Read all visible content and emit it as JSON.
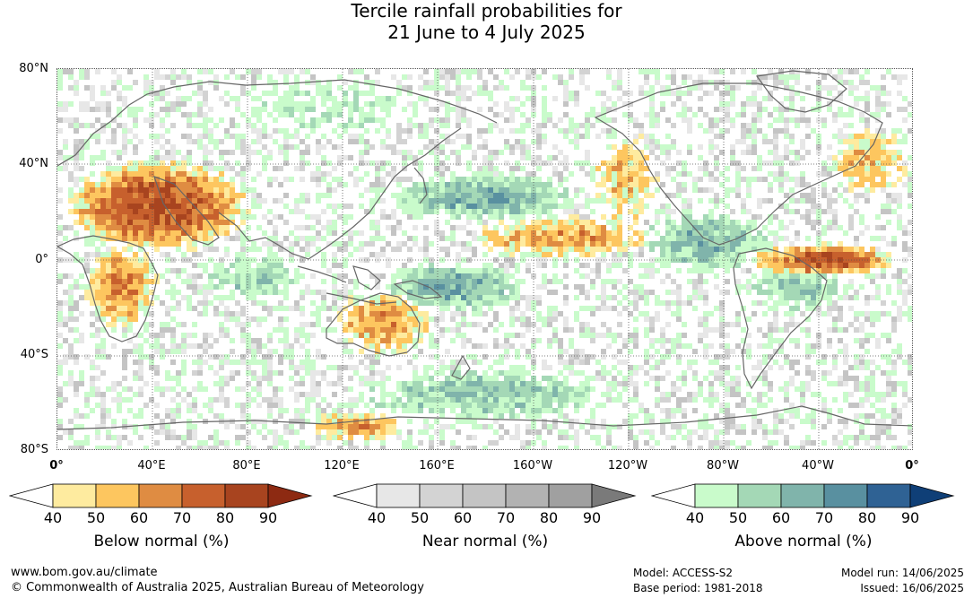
{
  "title": {
    "line1": "Tercile rainfall probabilities for",
    "line2": "21 June to 4 July 2025"
  },
  "axes": {
    "lat_labels": [
      "80°N",
      "40°N",
      "0°",
      "40°S",
      "80°S"
    ],
    "lon_labels": [
      "0°",
      "40°E",
      "80°E",
      "120°E",
      "160°E",
      "160°W",
      "120°W",
      "80°W",
      "40°W",
      "0°"
    ]
  },
  "legends": [
    {
      "title": "Below normal (%)",
      "ticks": [
        "40",
        "50",
        "60",
        "70",
        "80",
        "90"
      ],
      "colors": [
        "#ffffff",
        "#feeb9f",
        "#fdc65f",
        "#df8c42",
        "#c7602d",
        "#a8441f",
        "#8d2a12"
      ]
    },
    {
      "title": "Near normal (%)",
      "ticks": [
        "40",
        "50",
        "60",
        "70",
        "80",
        "90"
      ],
      "colors": [
        "#ffffff",
        "#e7e7e7",
        "#d3d3d3",
        "#c4c4c4",
        "#b2b2b2",
        "#a0a0a0",
        "#7a7a7a"
      ]
    },
    {
      "title": "Above normal (%)",
      "ticks": [
        "40",
        "50",
        "60",
        "70",
        "80",
        "90"
      ],
      "colors": [
        "#ffffff",
        "#c9fbcb",
        "#a4d8b6",
        "#80b4ab",
        "#5990a0",
        "#2f6294",
        "#0f3f77"
      ]
    }
  ],
  "footer": {
    "url": "www.bom.gov.au/climate",
    "copyright": "© Commonwealth of Australia 2025, Australian Bureau of Meteorology",
    "model": "Model: ACCESS-S2",
    "base_period": "Base period: 1981-2018",
    "model_run": "Model run: 14/06/2025",
    "issued": "Issued: 16/06/2025"
  }
}
